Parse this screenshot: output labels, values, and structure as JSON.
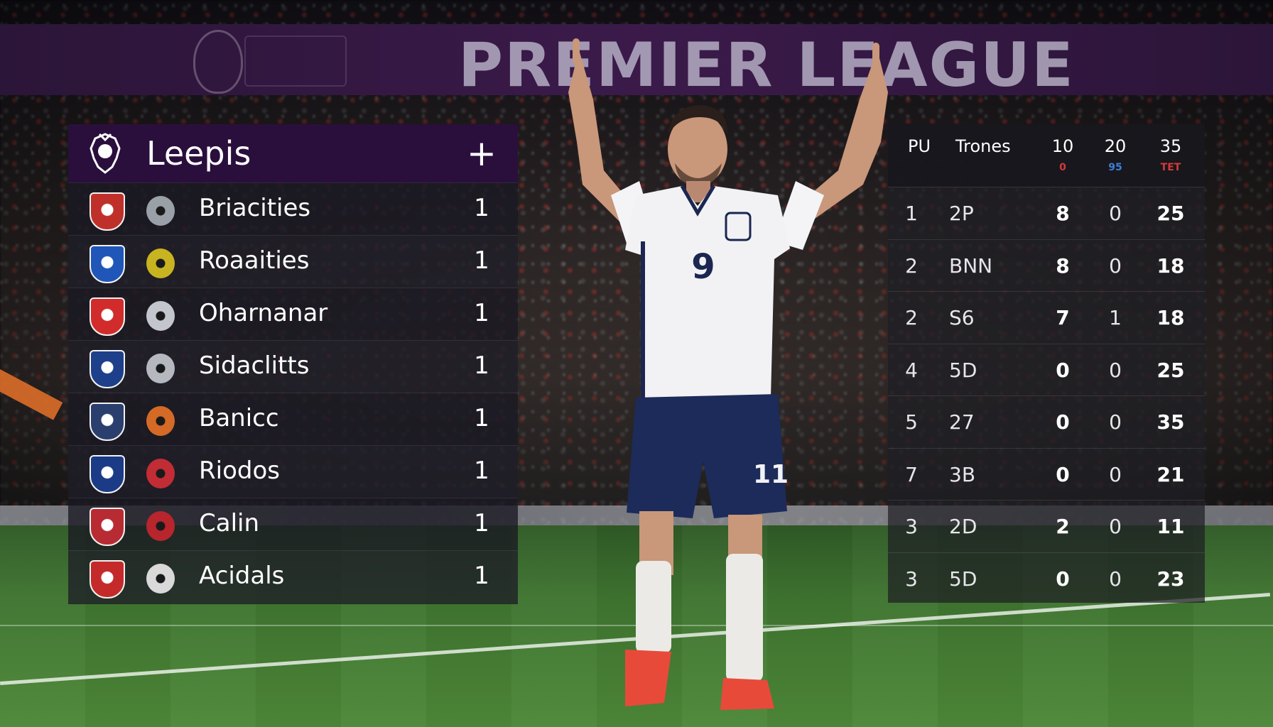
{
  "banner": {
    "text": "PREMIER LEAGUE"
  },
  "player": {
    "shirt_number": "9",
    "shorts_number": "11"
  },
  "left_panel": {
    "title": "Leepis",
    "plus_label": "+",
    "rows": [
      {
        "name": "Briacities",
        "value": "1",
        "crest_color": "#c0302a",
        "crest2_color": "#9aa0a8"
      },
      {
        "name": "Roaaities",
        "value": "1",
        "crest_color": "#1f56b8",
        "crest2_color": "#c8b420"
      },
      {
        "name": "Oharnanar",
        "value": "1",
        "crest_color": "#d12b2b",
        "crest2_color": "#c3c6cc"
      },
      {
        "name": "Sidaclitts",
        "value": "1",
        "crest_color": "#1e3f8a",
        "crest2_color": "#b5b8be"
      },
      {
        "name": "Banicc",
        "value": "1",
        "crest_color": "#2a3f6e",
        "crest2_color": "#d46a26"
      },
      {
        "name": "Riodos",
        "value": "1",
        "crest_color": "#1b3b86",
        "crest2_color": "#c22d35"
      },
      {
        "name": "Calin",
        "value": "1",
        "crest_color": "#b82b32",
        "crest2_color": "#b8252c"
      },
      {
        "name": "Acidals",
        "value": "1",
        "crest_color": "#c42a2a",
        "crest2_color": "#d9d9d9"
      }
    ]
  },
  "right_panel": {
    "headers": {
      "pos": "PU",
      "team": "Trones",
      "c1": "10",
      "c2": "20",
      "c3": "35",
      "c1_sub": "0",
      "c2_sub": "95",
      "c3_sub": "TET",
      "c1_sub_color": "#d43a3a",
      "c2_sub_color": "#3d7fd8",
      "c3_sub_color": "#d43a3a"
    },
    "rows": [
      {
        "pos": "1",
        "team": "2P",
        "c1": "8",
        "c2": "0",
        "c3": "25"
      },
      {
        "pos": "2",
        "team": "BNN",
        "c1": "8",
        "c2": "0",
        "c3": "18"
      },
      {
        "pos": "2",
        "team": "S6",
        "c1": "7",
        "c2": "1",
        "c3": "18"
      },
      {
        "pos": "4",
        "team": "5D",
        "c1": "0",
        "c2": "0",
        "c3": "25"
      },
      {
        "pos": "5",
        "team": "27",
        "c1": "0",
        "c2": "0",
        "c3": "35"
      },
      {
        "pos": "7",
        "team": "3B",
        "c1": "0",
        "c2": "0",
        "c3": "21"
      },
      {
        "pos": "3",
        "team": "2D",
        "c1": "2",
        "c2": "0",
        "c3": "11"
      },
      {
        "pos": "3",
        "team": "5D",
        "c1": "0",
        "c2": "0",
        "c3": "23"
      }
    ]
  }
}
